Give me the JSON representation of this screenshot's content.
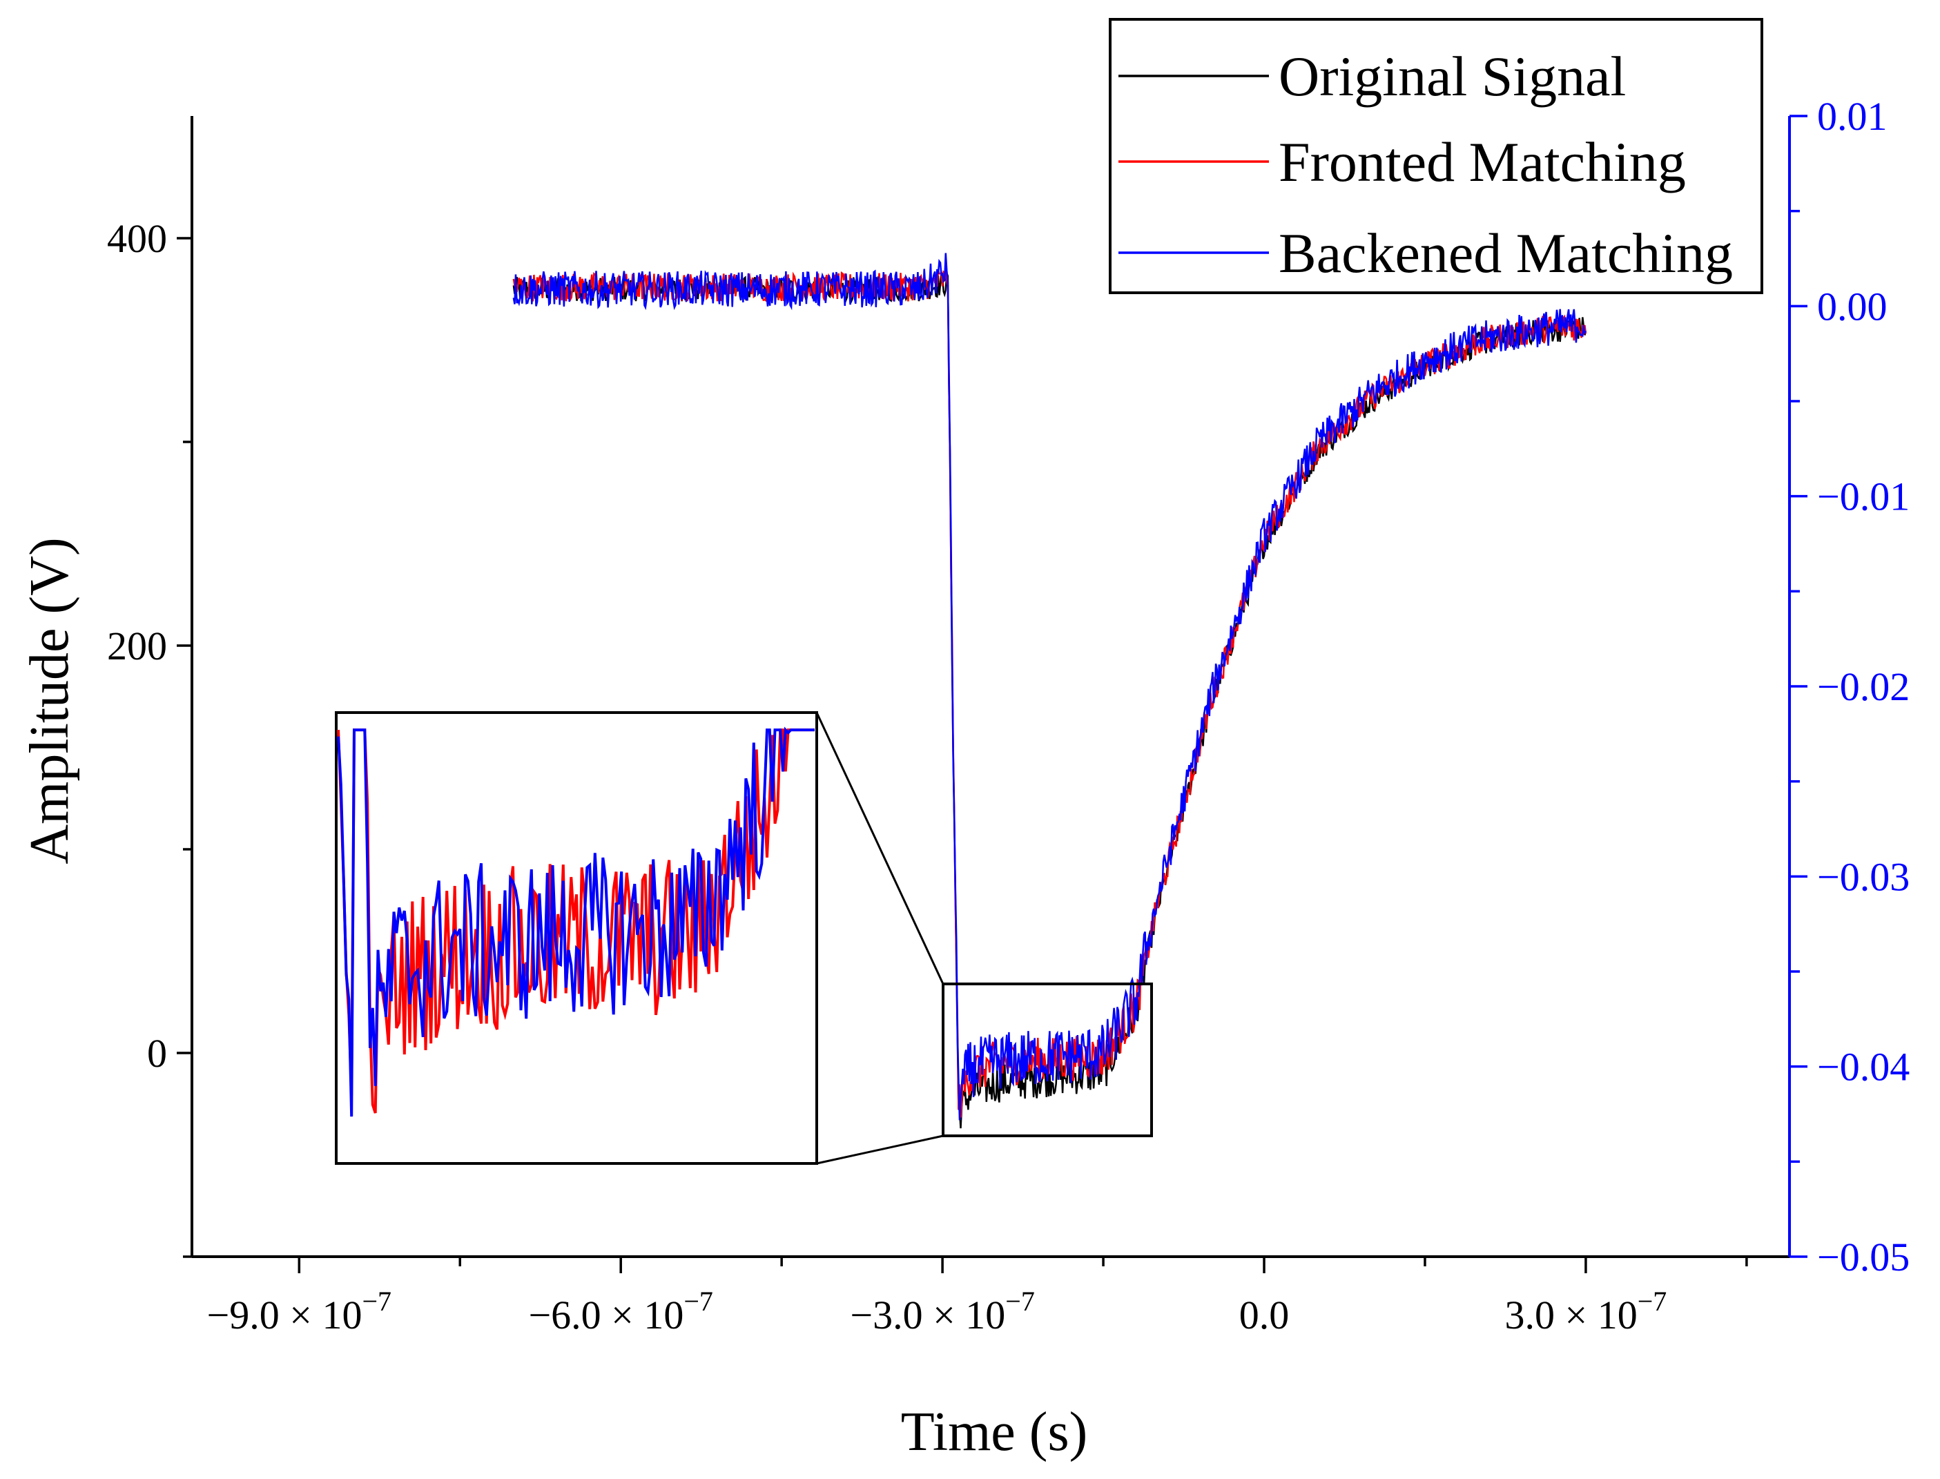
{
  "chart_data": {
    "type": "line",
    "xlabel": "Time (s)",
    "ylabel": "Amplitude (V)",
    "xlim": [
      -1e-06,
      4.9e-07
    ],
    "ylim": [
      -100,
      460
    ],
    "y2lim": [
      -0.05,
      0.01
    ],
    "x_tick_labels": [
      {
        "mantissa": "−9.0",
        "exp": "−7",
        "value": -9e-07
      },
      {
        "mantissa": "−6.0",
        "exp": "−7",
        "value": -6e-07
      },
      {
        "mantissa": "−3.0",
        "exp": "−7",
        "value": -3e-07
      },
      {
        "plain": "0.0",
        "value": 0
      },
      {
        "mantissa": "3.0",
        "exp": "−7",
        "value": 3e-07
      }
    ],
    "x_times": "×",
    "x_base": "10",
    "y_ticks": [
      {
        "label": "0",
        "value": 0
      },
      {
        "label": "200",
        "value": 200
      },
      {
        "label": "400",
        "value": 400
      }
    ],
    "y_minor": [
      -100,
      100,
      300
    ],
    "y2_ticks": [
      {
        "label": "0.01",
        "value": 0.01
      },
      {
        "label": "0.00",
        "value": 0.0
      },
      {
        "label": "−0.01",
        "value": -0.01
      },
      {
        "label": "−0.02",
        "value": -0.02
      },
      {
        "label": "−0.03",
        "value": -0.03
      },
      {
        "label": "−0.04",
        "value": -0.04
      },
      {
        "label": "−0.05",
        "value": -0.05
      }
    ],
    "series": [
      {
        "name": "Original Signal",
        "color": "#000000",
        "x": [
          -7e-07,
          -5e-07,
          -3.2e-07,
          -2.95e-07,
          -2.9e-07,
          -2.85e-07,
          -2.75e-07,
          -2.5e-07,
          -2e-07,
          -1.5e-07,
          -1.2e-07,
          -1e-07,
          -5e-08,
          0,
          5e-08,
          1e-07,
          1.5e-07,
          2e-07,
          2.5e-07,
          3e-07
        ],
        "y": [
          375,
          375,
          375,
          378,
          150,
          -30,
          -20,
          -15,
          -12,
          -10,
          20,
          70,
          170,
          250,
          295,
          320,
          337,
          348,
          354,
          356
        ]
      },
      {
        "name": "Fronted Matching",
        "color": "#ff0000",
        "x": [
          -7e-07,
          -5e-07,
          -3.2e-07,
          -2.95e-07,
          -2.9e-07,
          -2.85e-07,
          -2.75e-07,
          -2.5e-07,
          -2e-07,
          -1.5e-07,
          -1.2e-07,
          -1e-07,
          -5e-08,
          0,
          5e-08,
          1e-07,
          1.5e-07,
          2e-07,
          2.5e-07,
          3e-07
        ],
        "y": [
          376,
          376,
          376,
          380,
          150,
          -25,
          -10,
          -5,
          -3,
          -2,
          22,
          72,
          172,
          252,
          297,
          322,
          338,
          349,
          355,
          357
        ]
      },
      {
        "name": "Backened Matching",
        "color": "#0000ff",
        "x": [
          -7e-07,
          -5e-07,
          -3.2e-07,
          -2.95e-07,
          -2.9e-07,
          -2.85e-07,
          -2.75e-07,
          -2.5e-07,
          -2e-07,
          -1.5e-07,
          -1.2e-07,
          -1e-07,
          -5e-08,
          0,
          5e-08,
          1e-07,
          1.5e-07,
          2e-07,
          2.5e-07,
          3e-07
        ],
        "y": [
          375,
          375,
          375,
          385,
          150,
          -22,
          -8,
          -4,
          -2,
          0,
          25,
          75,
          175,
          254,
          299,
          324,
          340,
          350,
          355,
          358
        ]
      }
    ],
    "inset": {
      "x_range": [
        -2.98e-07,
        -1.02e-07
      ],
      "y_range": [
        -40,
        35
      ],
      "location": "lower-left"
    },
    "legend_position": "top-right"
  }
}
